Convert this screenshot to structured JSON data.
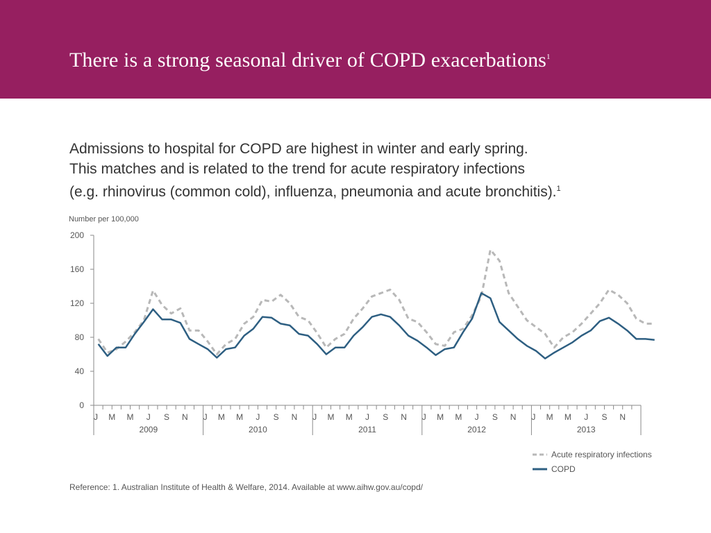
{
  "header": {
    "title": "There is a strong seasonal driver of COPD exacerbations",
    "title_sup": "1",
    "background_color": "#961f60"
  },
  "subtitle": {
    "line1": "Admissions to hospital for COPD are highest in winter and early spring.",
    "line2": "This matches and is related to the trend for acute respiratory infections",
    "line3": "(e.g. rhinovirus (common cold), influenza, pneumonia and acute bronchitis).",
    "sup": "1"
  },
  "chart_data": {
    "type": "line",
    "ylabel": "Number per 100,000",
    "ylim": [
      0,
      200
    ],
    "yticks": [
      0,
      40,
      80,
      120,
      160,
      200
    ],
    "grid": false,
    "legend_position": "bottom-right",
    "month_tick_labels": [
      "J",
      "M",
      "M",
      "J",
      "S",
      "N"
    ],
    "years": [
      "2009",
      "2010",
      "2011",
      "2012",
      "2013"
    ],
    "x_unit": "month",
    "series": [
      {
        "name": "Acute respiratory infections",
        "style": "dashed",
        "color": "#b8b8b8",
        "values": [
          78,
          62,
          66,
          75,
          86,
          100,
          135,
          118,
          108,
          114,
          88,
          88,
          75,
          60,
          72,
          78,
          96,
          104,
          124,
          122,
          130,
          120,
          104,
          100,
          85,
          68,
          78,
          84,
          102,
          114,
          128,
          132,
          136,
          124,
          102,
          98,
          86,
          72,
          70,
          86,
          90,
          106,
          128,
          183,
          170,
          132,
          116,
          100,
          92,
          84,
          68,
          80,
          86,
          96,
          108,
          120,
          136,
          130,
          120,
          102,
          96,
          96
        ]
      },
      {
        "name": "COPD",
        "style": "solid",
        "color": "#2e5f82",
        "values": [
          72,
          58,
          68,
          68,
          84,
          98,
          113,
          101,
          101,
          97,
          78,
          72,
          66,
          56,
          66,
          68,
          82,
          90,
          104,
          103,
          96,
          94,
          84,
          82,
          72,
          60,
          68,
          68,
          82,
          92,
          104,
          107,
          104,
          94,
          82,
          76,
          68,
          59,
          66,
          68,
          86,
          102,
          132,
          126,
          98,
          88,
          78,
          70,
          64,
          55,
          62,
          68,
          74,
          82,
          88,
          99,
          103,
          96,
          88,
          78,
          78,
          77
        ]
      }
    ]
  },
  "reference": "Reference: 1. Australian Institute of Health & Welfare, 2014. Available at www.aihw.gov.au/copd/"
}
